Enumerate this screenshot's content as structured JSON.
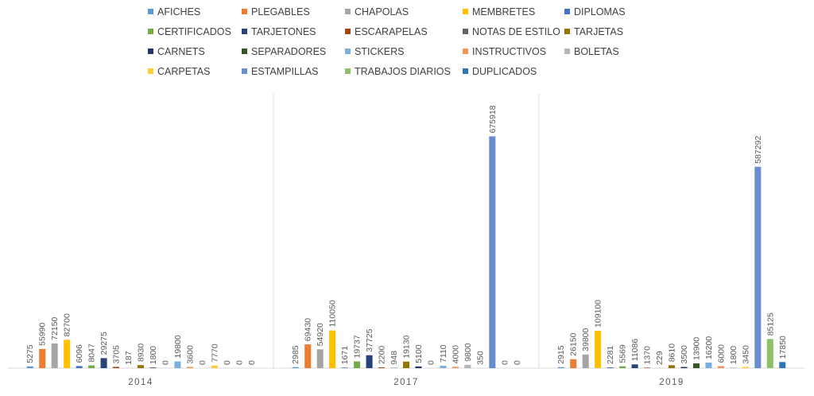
{
  "chart_data": {
    "type": "bar",
    "title": "",
    "xlabel": "",
    "ylabel": "",
    "ylim": [
      0,
      800000
    ],
    "grid": false,
    "legend_position": "top",
    "categories": [
      "2014",
      "2017",
      "2019"
    ],
    "series": [
      {
        "name": "AFICHES",
        "color": "#5b9bd5",
        "values": [
          5275,
          2985,
          2915
        ]
      },
      {
        "name": "PLEGABLES",
        "color": "#ed7d31",
        "values": [
          55990,
          69430,
          26150
        ]
      },
      {
        "name": "CHAPOLAS",
        "color": "#a5a5a5",
        "values": [
          72150,
          54920,
          39800
        ]
      },
      {
        "name": "MEMBRETES",
        "color": "#ffc000",
        "values": [
          82700,
          110050,
          109100
        ]
      },
      {
        "name": "DIPLOMAS",
        "color": "#4472c4",
        "values": [
          6096,
          1671,
          2281
        ]
      },
      {
        "name": "CERTIFICADOS",
        "color": "#70ad47",
        "values": [
          8047,
          19737,
          5569
        ]
      },
      {
        "name": "TARJETONES",
        "color": "#264478",
        "values": [
          29275,
          37725,
          11086
        ]
      },
      {
        "name": "ESCARAPELAS",
        "color": "#9e480e",
        "values": [
          3705,
          2200,
          1370
        ]
      },
      {
        "name": "NOTAS DE ESTILO",
        "color": "#636363",
        "values": [
          187,
          948,
          229
        ]
      },
      {
        "name": "TARJETAS",
        "color": "#997300",
        "values": [
          8930,
          19130,
          8610
        ]
      },
      {
        "name": "CARNETS",
        "color": "#203864",
        "values": [
          1800,
          5100,
          3500
        ]
      },
      {
        "name": "SEPARADORES",
        "color": "#375623",
        "values": [
          0,
          0,
          13900
        ]
      },
      {
        "name": "STICKERS",
        "color": "#7cafdd",
        "values": [
          19800,
          7110,
          16200
        ]
      },
      {
        "name": "INSTRUCTIVOS",
        "color": "#f1975a",
        "values": [
          3600,
          4000,
          6000
        ]
      },
      {
        "name": "BOLETAS",
        "color": "#b7b7b7",
        "values": [
          0,
          9800,
          1800
        ]
      },
      {
        "name": "CARPETAS",
        "color": "#ffcd33",
        "values": [
          7770,
          350,
          3450
        ]
      },
      {
        "name": "ESTAMPILLAS",
        "color": "#698ed0",
        "values": [
          0,
          675918,
          587292
        ]
      },
      {
        "name": "TRABAJOS DIARIOS",
        "color": "#8cc168",
        "values": [
          0,
          0,
          85125
        ]
      },
      {
        "name": "DUPLICADOS",
        "color": "#2e75b6",
        "values": [
          0,
          0,
          17850
        ]
      }
    ]
  }
}
